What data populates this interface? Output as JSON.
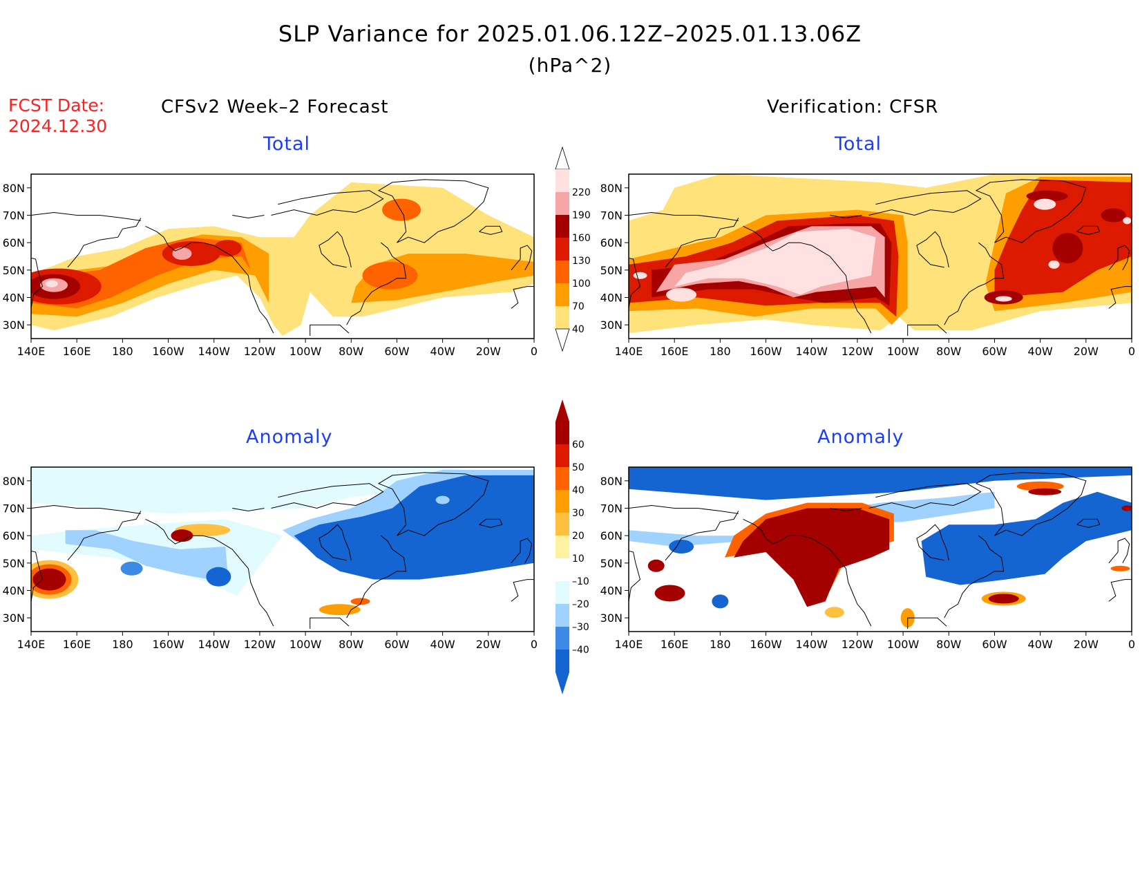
{
  "header": {
    "title": "SLP Variance for 2025.01.06.12Z–2025.01.13.06Z",
    "units": "(hPa^2)",
    "fcst_label": "FCST Date:",
    "fcst_date": "2024.12.30",
    "left_column": "CFSv2 Week–2 Forecast",
    "right_column": "Verification: CFSR"
  },
  "panels": {
    "forecast_total": {
      "title": "Total"
    },
    "verify_total": {
      "title": "Total"
    },
    "forecast_anomaly": {
      "title": "Anomaly"
    },
    "verify_anomaly": {
      "title": "Anomaly"
    }
  },
  "axes": {
    "lon_ticks": [
      "140E",
      "160E",
      "180",
      "160W",
      "140W",
      "120W",
      "100W",
      "80W",
      "60W",
      "40W",
      "20W",
      "0"
    ],
    "lat_ticks": [
      "80N",
      "70N",
      "60N",
      "50N",
      "40N",
      "30N"
    ],
    "lon_range_deg_east": [
      140,
      360
    ],
    "lat_range_deg_north": [
      25,
      85
    ]
  },
  "colorbars": {
    "total": {
      "labels": [
        "220",
        "190",
        "160",
        "130",
        "100",
        "70",
        "40"
      ],
      "colors": [
        "#ffe1e1",
        "#f6a6a6",
        "#a50000",
        "#dc1a00",
        "#ff6300",
        "#ff9e00",
        "#ffe27a"
      ]
    },
    "anomaly": {
      "labels": [
        "60",
        "50",
        "40",
        "30",
        "20",
        "10",
        "–10",
        "–20",
        "–30",
        "–40"
      ],
      "colors": [
        "#a50000",
        "#dc1a00",
        "#ff6300",
        "#ff9e00",
        "#ffc040",
        "#fff2a0",
        "#ffffff",
        "#e2fbff",
        "#a0d2ff",
        "#3c8ae6",
        "#1464d2"
      ]
    }
  }
}
